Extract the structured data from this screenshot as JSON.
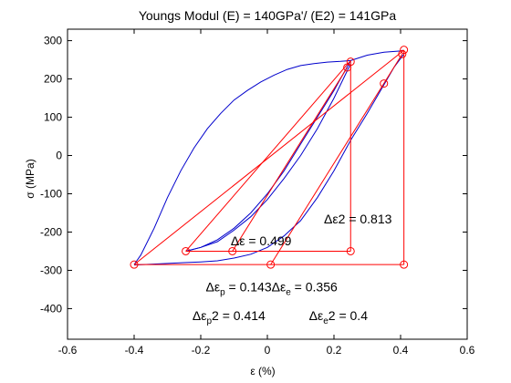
{
  "chart_data": {
    "type": "line",
    "title": "Youngs Modul (E) = 140GPa'/ (E2) = 141GPa",
    "xlabel": "ε (%)",
    "ylabel": "σ (MPa)",
    "xlim": [
      -0.6,
      0.6
    ],
    "ylim": [
      -480,
      330
    ],
    "x_ticks": [
      -0.6,
      -0.4,
      -0.2,
      0,
      0.2,
      0.4,
      0.6
    ],
    "x_tick_labels": [
      "-0.6",
      "-0.4",
      "-0.2",
      "0",
      "0.2",
      "0.4",
      "0.6"
    ],
    "y_ticks": [
      -400,
      -300,
      -200,
      -100,
      0,
      100,
      200,
      300
    ],
    "y_tick_labels": [
      "-400",
      "-300",
      "-200",
      "-100",
      "0",
      "100",
      "200",
      "300"
    ],
    "grid": false,
    "colors": {
      "curve": "#0000cc",
      "markers": "#ff0000",
      "axes": "#000000"
    },
    "series": [
      {
        "kind": "curve",
        "color": "#0000cc",
        "x": [
          -0.4,
          -0.38,
          -0.34,
          -0.3,
          -0.26,
          -0.22,
          -0.18,
          -0.14,
          -0.1,
          -0.06,
          -0.02,
          0.02,
          0.06,
          0.1,
          0.14,
          0.18,
          0.22,
          0.25
        ],
        "y": [
          -285,
          -260,
          -190,
          -110,
          -40,
          20,
          70,
          110,
          145,
          170,
          192,
          210,
          225,
          235,
          240,
          244,
          246,
          248
        ]
      },
      {
        "kind": "curve",
        "color": "#0000cc",
        "x": [
          0.25,
          0.2,
          0.15,
          0.1,
          0.05,
          0.0,
          -0.05,
          -0.1,
          -0.15,
          -0.2,
          -0.245
        ],
        "y": [
          248,
          170,
          100,
          30,
          -40,
          -100,
          -150,
          -190,
          -220,
          -240,
          -250
        ]
      },
      {
        "kind": "curve",
        "color": "#0000cc",
        "x": [
          -0.245,
          -0.2,
          -0.15,
          -0.1,
          -0.05,
          0.0,
          0.05,
          0.1,
          0.15,
          0.2,
          0.25
        ],
        "y": [
          -250,
          -240,
          -225,
          -195,
          -160,
          -115,
          -60,
          0,
          70,
          150,
          240
        ]
      },
      {
        "kind": "curve",
        "color": "#0000cc",
        "x": [
          0.25,
          0.3,
          0.35,
          0.4,
          0.41
        ],
        "y": [
          248,
          262,
          270,
          273,
          275
        ]
      },
      {
        "kind": "curve",
        "color": "#0000cc",
        "x": [
          0.41,
          0.38,
          0.35,
          0.3,
          0.25,
          0.2,
          0.15,
          0.1,
          0.05,
          0.0,
          -0.05,
          -0.1,
          -0.15,
          -0.2,
          -0.25,
          -0.3,
          -0.35,
          -0.4
        ],
        "y": [
          265,
          230,
          185,
          110,
          40,
          -40,
          -110,
          -170,
          -210,
          -240,
          -258,
          -268,
          -275,
          -278,
          -280,
          -282,
          -284,
          -286
        ]
      }
    ],
    "lines": [
      {
        "x": [
          -0.245,
          0.25
        ],
        "y": [
          -250,
          -250
        ],
        "color": "#ff0000"
      },
      {
        "x": [
          -0.245,
          0.25
        ],
        "y": [
          -250,
          248
        ],
        "color": "#ff0000"
      },
      {
        "x": [
          0.25,
          0.25
        ],
        "y": [
          248,
          -250
        ],
        "color": "#ff0000"
      },
      {
        "x": [
          -0.105,
          0.24
        ],
        "y": [
          -250,
          230
        ],
        "color": "#ff0000"
      },
      {
        "x": [
          -0.4,
          0.41
        ],
        "y": [
          -285,
          -285
        ],
        "color": "#ff0000"
      },
      {
        "x": [
          -0.4,
          0.41
        ],
        "y": [
          -285,
          275
        ],
        "color": "#ff0000"
      },
      {
        "x": [
          0.41,
          0.41
        ],
        "y": [
          275,
          -285
        ],
        "color": "#ff0000"
      },
      {
        "x": [
          0.01,
          0.405
        ],
        "y": [
          -285,
          265
        ],
        "color": "#ff0000"
      }
    ],
    "markers": [
      {
        "x": -0.4,
        "y": -285
      },
      {
        "x": -0.245,
        "y": -250
      },
      {
        "x": -0.105,
        "y": -250
      },
      {
        "x": 0.01,
        "y": -285
      },
      {
        "x": 0.25,
        "y": -250
      },
      {
        "x": 0.41,
        "y": -285
      },
      {
        "x": 0.24,
        "y": 230
      },
      {
        "x": 0.25,
        "y": 245
      },
      {
        "x": 0.35,
        "y": 188
      },
      {
        "x": 0.405,
        "y": 265
      },
      {
        "x": 0.41,
        "y": 276
      }
    ],
    "annotations": [
      {
        "text_parts": [
          {
            "t": "Δε2 = 0.813"
          }
        ],
        "x": 0.17,
        "y": -178
      },
      {
        "text_parts": [
          {
            "t": "Δε = 0.499"
          }
        ],
        "x": -0.11,
        "y": -235
      },
      {
        "text_parts": [
          {
            "t": "Δε"
          },
          {
            "t": "p",
            "sub": true
          },
          {
            "t": " = 0.143"
          },
          {
            "t": "Δε"
          },
          {
            "t": "e",
            "sub": true
          },
          {
            "t": " = 0.356"
          }
        ],
        "x": -0.185,
        "y": -355
      },
      {
        "text_parts": [
          {
            "t": "Δε"
          },
          {
            "t": "p",
            "sub": true
          },
          {
            "t": "2 = 0.414"
          }
        ],
        "x": -0.225,
        "y": -430
      },
      {
        "text_parts": [
          {
            "t": "Δε"
          },
          {
            "t": "e",
            "sub": true
          },
          {
            "t": "2 = 0.4"
          }
        ],
        "x": 0.125,
        "y": -430
      }
    ]
  }
}
